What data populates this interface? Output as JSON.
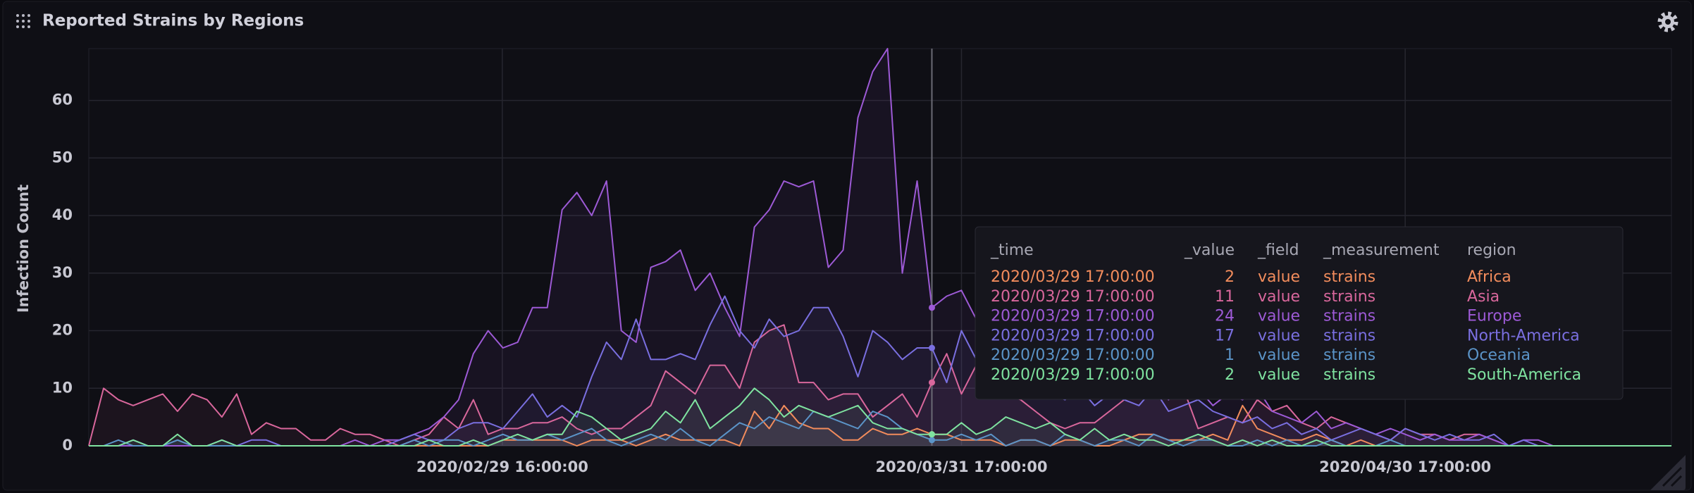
{
  "chart_data": {
    "type": "line",
    "title": "Reported Strains by Regions",
    "ylabel": "Infection Count",
    "x": [
      "2020/02/01 17:00:00",
      "2020/02/02 17:00:00",
      "2020/02/03 17:00:00",
      "2020/02/04 17:00:00",
      "2020/02/05 17:00:00",
      "2020/02/06 17:00:00",
      "2020/02/07 17:00:00",
      "2020/02/08 17:00:00",
      "2020/02/09 17:00:00",
      "2020/02/10 17:00:00",
      "2020/02/11 17:00:00",
      "2020/02/12 17:00:00",
      "2020/02/13 17:00:00",
      "2020/02/14 17:00:00",
      "2020/02/15 17:00:00",
      "2020/02/16 17:00:00",
      "2020/02/17 17:00:00",
      "2020/02/18 17:00:00",
      "2020/02/19 17:00:00",
      "2020/02/20 17:00:00",
      "2020/02/21 17:00:00",
      "2020/02/22 17:00:00",
      "2020/02/23 17:00:00",
      "2020/02/24 17:00:00",
      "2020/02/25 17:00:00",
      "2020/02/26 17:00:00",
      "2020/02/27 17:00:00",
      "2020/02/28 17:00:00",
      "2020/02/29 17:00:00",
      "2020/03/01 17:00:00",
      "2020/03/02 17:00:00",
      "2020/03/03 17:00:00",
      "2020/03/04 17:00:00",
      "2020/03/05 17:00:00",
      "2020/03/06 17:00:00",
      "2020/03/07 17:00:00",
      "2020/03/08 17:00:00",
      "2020/03/09 17:00:00",
      "2020/03/10 17:00:00",
      "2020/03/11 17:00:00",
      "2020/03/12 17:00:00",
      "2020/03/13 17:00:00",
      "2020/03/14 17:00:00",
      "2020/03/15 17:00:00",
      "2020/03/16 17:00:00",
      "2020/03/17 17:00:00",
      "2020/03/18 17:00:00",
      "2020/03/19 17:00:00",
      "2020/03/20 17:00:00",
      "2020/03/21 17:00:00",
      "2020/03/22 17:00:00",
      "2020/03/23 17:00:00",
      "2020/03/24 17:00:00",
      "2020/03/25 17:00:00",
      "2020/03/26 17:00:00",
      "2020/03/27 17:00:00",
      "2020/03/28 17:00:00",
      "2020/03/29 17:00:00",
      "2020/03/30 17:00:00",
      "2020/03/31 17:00:00",
      "2020/04/01 17:00:00",
      "2020/04/02 17:00:00",
      "2020/04/03 17:00:00",
      "2020/04/04 17:00:00",
      "2020/04/05 17:00:00",
      "2020/04/06 17:00:00",
      "2020/04/07 17:00:00",
      "2020/04/08 17:00:00",
      "2020/04/09 17:00:00",
      "2020/04/10 17:00:00",
      "2020/04/11 17:00:00",
      "2020/04/12 17:00:00",
      "2020/04/13 17:00:00",
      "2020/04/14 17:00:00",
      "2020/04/15 17:00:00",
      "2020/04/16 17:00:00",
      "2020/04/17 17:00:00",
      "2020/04/18 17:00:00",
      "2020/04/19 17:00:00",
      "2020/04/20 17:00:00",
      "2020/04/21 17:00:00",
      "2020/04/22 17:00:00",
      "2020/04/23 17:00:00",
      "2020/04/24 17:00:00",
      "2020/04/25 17:00:00",
      "2020/04/26 17:00:00",
      "2020/04/27 17:00:00",
      "2020/04/28 17:00:00",
      "2020/04/29 17:00:00",
      "2020/04/30 17:00:00",
      "2020/05/01 17:00:00",
      "2020/05/02 17:00:00",
      "2020/05/03 17:00:00",
      "2020/05/04 17:00:00",
      "2020/05/05 17:00:00",
      "2020/05/06 17:00:00",
      "2020/05/07 17:00:00",
      "2020/05/08 17:00:00",
      "2020/05/09 17:00:00",
      "2020/05/10 17:00:00",
      "2020/05/11 17:00:00",
      "2020/05/12 17:00:00",
      "2020/05/13 17:00:00",
      "2020/05/14 17:00:00",
      "2020/05/15 17:00:00",
      "2020/05/16 17:00:00",
      "2020/05/17 17:00:00",
      "2020/05/18 17:00:00"
    ],
    "series": [
      {
        "name": "Africa",
        "color": "#f28c5c",
        "values": [
          0,
          0,
          0,
          0,
          0,
          0,
          0,
          0,
          0,
          0,
          0,
          0,
          0,
          0,
          0,
          0,
          0,
          0,
          0,
          0,
          0,
          0,
          0,
          0,
          0,
          0,
          0,
          0,
          1,
          1,
          1,
          1,
          1,
          0,
          1,
          1,
          1,
          0,
          1,
          2,
          1,
          1,
          1,
          1,
          0,
          6,
          3,
          7,
          4,
          3,
          3,
          1,
          1,
          3,
          2,
          2,
          3,
          2,
          2,
          1,
          1,
          1,
          0,
          1,
          1,
          0,
          1,
          1,
          0,
          0,
          1,
          2,
          2,
          1,
          1,
          1,
          2,
          1,
          7,
          3,
          2,
          1,
          1,
          2,
          1,
          0,
          1,
          0,
          0,
          0,
          0,
          0,
          0,
          0,
          0,
          0,
          0,
          0,
          0,
          0,
          0,
          0,
          0,
          0,
          0,
          0,
          0,
          0
        ]
      },
      {
        "name": "Asia",
        "color": "#d9679c",
        "values": [
          0,
          10,
          8,
          7,
          8,
          9,
          6,
          9,
          8,
          5,
          9,
          2,
          4,
          3,
          3,
          1,
          1,
          3,
          2,
          2,
          1,
          0,
          1,
          2,
          5,
          3,
          8,
          2,
          3,
          3,
          4,
          4,
          5,
          3,
          2,
          3,
          3,
          5,
          7,
          13,
          11,
          9,
          14,
          14,
          10,
          18,
          20,
          21,
          11,
          11,
          8,
          9,
          9,
          5,
          7,
          9,
          5,
          11,
          16,
          9,
          14,
          11,
          9,
          8,
          6,
          4,
          3,
          4,
          4,
          6,
          8,
          10,
          12,
          14,
          10,
          3,
          4,
          5,
          4,
          8,
          6,
          7,
          4,
          3,
          5,
          4,
          3,
          2,
          1,
          3,
          2,
          2,
          1,
          2,
          2,
          1,
          0,
          0,
          0,
          0,
          0,
          0,
          0,
          0,
          0,
          0,
          0,
          0
        ]
      },
      {
        "name": "Europe",
        "color": "#9d5ad6",
        "values": [
          0,
          0,
          0,
          0,
          0,
          0,
          0,
          0,
          0,
          0,
          0,
          0,
          0,
          0,
          0,
          0,
          0,
          0,
          1,
          0,
          1,
          1,
          2,
          3,
          5,
          8,
          16,
          20,
          17,
          18,
          24,
          24,
          41,
          44,
          40,
          46,
          20,
          18,
          31,
          32,
          34,
          27,
          30,
          24,
          19,
          38,
          41,
          46,
          45,
          46,
          31,
          34,
          57,
          65,
          69,
          30,
          46,
          24,
          26,
          27,
          22,
          20,
          18,
          21,
          15,
          17,
          14,
          12,
          16,
          13,
          10,
          9,
          11,
          8,
          12,
          10,
          7,
          9,
          8,
          10,
          6,
          5,
          4,
          6,
          3,
          4,
          3,
          2,
          3,
          2,
          1,
          2,
          1,
          1,
          2,
          1,
          0,
          1,
          1,
          0,
          0,
          0,
          0,
          0,
          0,
          0,
          0,
          0
        ]
      },
      {
        "name": "North-America",
        "color": "#7a6fe0",
        "values": [
          0,
          0,
          0,
          1,
          0,
          0,
          1,
          0,
          0,
          1,
          0,
          1,
          1,
          0,
          0,
          0,
          0,
          0,
          0,
          0,
          0,
          1,
          2,
          1,
          1,
          3,
          4,
          4,
          3,
          6,
          9,
          5,
          7,
          5,
          12,
          18,
          15,
          22,
          15,
          15,
          16,
          15,
          21,
          26,
          20,
          17,
          22,
          19,
          20,
          24,
          24,
          19,
          12,
          20,
          18,
          15,
          17,
          17,
          11,
          20,
          15,
          13,
          12,
          10,
          11,
          9,
          8,
          10,
          7,
          9,
          8,
          7,
          10,
          6,
          7,
          8,
          6,
          5,
          4,
          5,
          3,
          4,
          2,
          3,
          1,
          2,
          3,
          2,
          1,
          3,
          2,
          1,
          2,
          1,
          1,
          2,
          0,
          1,
          0,
          0,
          0,
          0,
          0,
          0,
          0,
          0,
          0,
          0
        ]
      },
      {
        "name": "Oceania",
        "color": "#5b94c8",
        "values": [
          0,
          0,
          1,
          0,
          0,
          0,
          1,
          0,
          0,
          0,
          0,
          0,
          0,
          0,
          0,
          0,
          0,
          0,
          0,
          0,
          0,
          0,
          1,
          0,
          1,
          1,
          0,
          1,
          2,
          1,
          1,
          2,
          1,
          2,
          3,
          1,
          0,
          1,
          2,
          1,
          3,
          1,
          0,
          2,
          4,
          3,
          5,
          4,
          3,
          6,
          5,
          4,
          3,
          6,
          5,
          3,
          2,
          1,
          1,
          2,
          1,
          2,
          0,
          1,
          1,
          0,
          2,
          1,
          0,
          1,
          1,
          0,
          2,
          1,
          0,
          1,
          1,
          0,
          0,
          1,
          0,
          1,
          0,
          0,
          1,
          0,
          0,
          0,
          1,
          0,
          0,
          0,
          0,
          0,
          0,
          0,
          0,
          0,
          0,
          0,
          0,
          0,
          0,
          0,
          0,
          0,
          0,
          0
        ]
      },
      {
        "name": "South-America",
        "color": "#7fe3a0",
        "values": [
          0,
          0,
          0,
          1,
          0,
          0,
          2,
          0,
          0,
          1,
          0,
          0,
          0,
          0,
          0,
          0,
          0,
          0,
          0,
          0,
          0,
          0,
          0,
          1,
          0,
          0,
          1,
          0,
          1,
          2,
          1,
          2,
          2,
          6,
          5,
          3,
          1,
          2,
          3,
          6,
          4,
          8,
          3,
          5,
          7,
          10,
          8,
          5,
          7,
          6,
          5,
          6,
          7,
          4,
          3,
          3,
          2,
          2,
          2,
          4,
          2,
          3,
          5,
          4,
          3,
          4,
          2,
          1,
          3,
          1,
          2,
          1,
          1,
          0,
          1,
          2,
          1,
          0,
          1,
          0,
          1,
          0,
          0,
          1,
          0,
          0,
          0,
          0,
          0,
          0,
          0,
          0,
          0,
          0,
          0,
          0,
          0,
          0,
          0,
          0,
          0,
          0,
          0,
          0,
          0,
          0,
          0,
          0
        ]
      }
    ],
    "xlim": [
      "2020/02/01 17:00:00",
      "2020/05/18 17:00:00"
    ],
    "xticks": [
      "2020/02/29 16:00:00",
      "2020/03/31 17:00:00",
      "2020/04/30 17:00:00"
    ],
    "ylim": [
      0,
      69
    ],
    "yticks": [
      0,
      10,
      20,
      30,
      40,
      50,
      60
    ],
    "grid": true,
    "tooltip": {
      "headers": [
        "_time",
        "_value",
        "_field",
        "_measurement",
        "region"
      ],
      "rows": [
        [
          "2020/03/29 17:00:00",
          "2",
          "value",
          "strains",
          "Africa"
        ],
        [
          "2020/03/29 17:00:00",
          "11",
          "value",
          "strains",
          "Asia"
        ],
        [
          "2020/03/29 17:00:00",
          "24",
          "value",
          "strains",
          "Europe"
        ],
        [
          "2020/03/29 17:00:00",
          "17",
          "value",
          "strains",
          "North-America"
        ],
        [
          "2020/03/29 17:00:00",
          "1",
          "value",
          "strains",
          "Oceania"
        ],
        [
          "2020/03/29 17:00:00",
          "2",
          "value",
          "strains",
          "South-America"
        ]
      ]
    }
  }
}
